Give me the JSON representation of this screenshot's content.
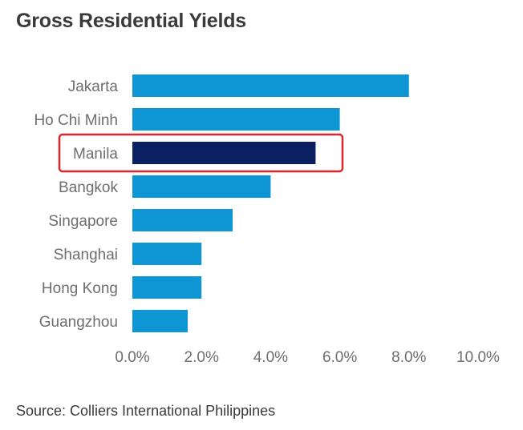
{
  "chart_data": {
    "type": "bar",
    "orientation": "horizontal",
    "title": "Gross Residential Yields",
    "categories": [
      "Jakarta",
      "Ho Chi Minh",
      "Manila",
      "Bangkok",
      "Singapore",
      "Shanghai",
      "Hong Kong",
      "Guangzhou"
    ],
    "values": [
      8.0,
      6.0,
      5.3,
      4.0,
      2.9,
      2.0,
      2.0,
      1.6
    ],
    "highlight": "Manila",
    "xlim": [
      0,
      10
    ],
    "x_ticks": [
      "0.0%",
      "2.0%",
      "4.0%",
      "6.0%",
      "8.0%",
      "10.0%"
    ],
    "xlabel": "",
    "ylabel": "",
    "grid": false,
    "legend": "none",
    "source": "Source: Colliers International Philippines"
  },
  "colors": {
    "bar": "#0e95d3",
    "highlight_bar": "#0a2062",
    "highlight_box": "#e0262d",
    "title": "#3a3a3a",
    "label": "#6e6e6e"
  }
}
